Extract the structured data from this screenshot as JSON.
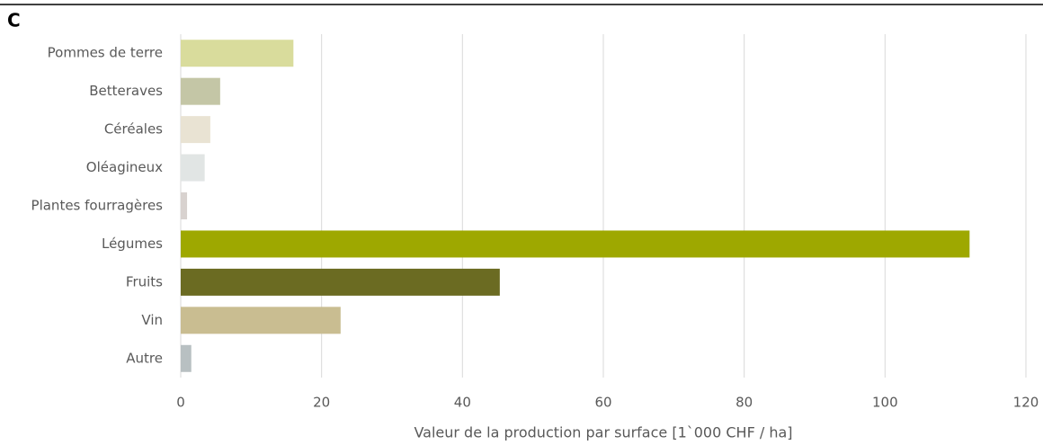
{
  "chart_data": {
    "type": "bar",
    "orientation": "horizontal",
    "panel_label": "C",
    "x_label": "Valeur de la production par surface [1`000 CHF / ha]",
    "categories": [
      "Pommes de terre",
      "Betteraves",
      "Céréales",
      "Oléagineux",
      "Plantes fourragères",
      "Légumes",
      "Fruits",
      "Vin",
      "Autre"
    ],
    "values": [
      16,
      5.6,
      4.2,
      3.4,
      0.9,
      112,
      45.3,
      22.7,
      1.5
    ],
    "colors": [
      "#d9dc9c",
      "#c4c6a6",
      "#e9e3d3",
      "#e1e5e4",
      "#d8d2cf",
      "#9ea800",
      "#6b6b22",
      "#c9bd91",
      "#b8c0c2"
    ],
    "xlim": [
      0,
      120
    ],
    "xticks": [
      0,
      20,
      40,
      60,
      80,
      100,
      120
    ],
    "grid": true
  }
}
